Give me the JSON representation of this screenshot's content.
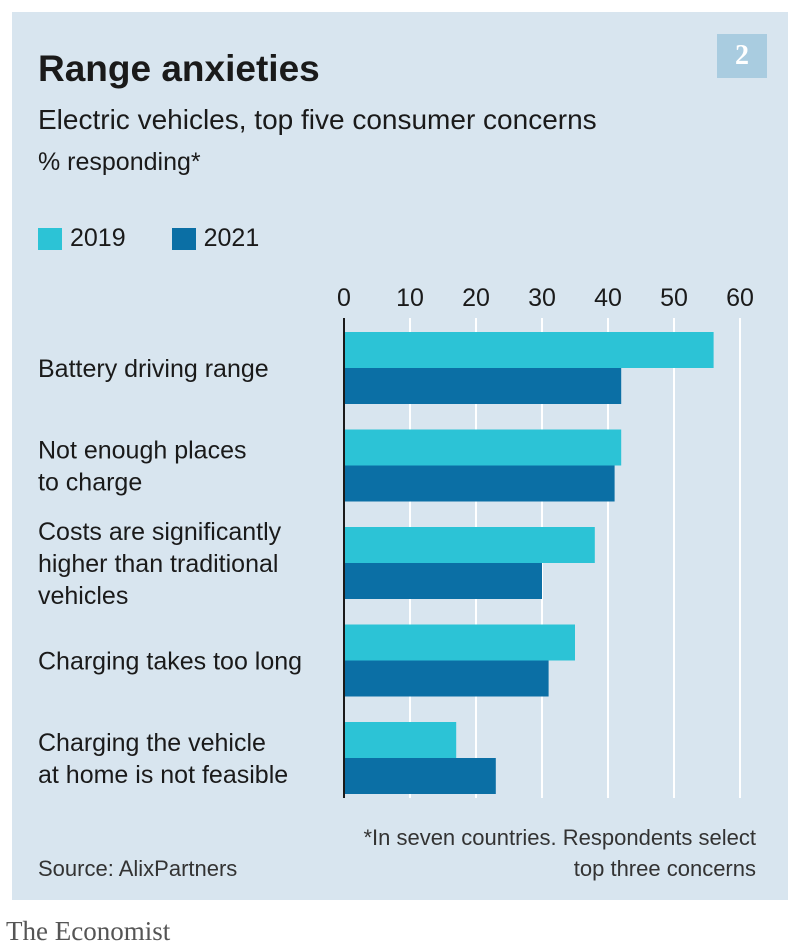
{
  "badge": "2",
  "footnote": "*In seven countries. Respondents select top three concerns",
  "source": "Source: AlixPartners",
  "brand": "The Economist",
  "colors": {
    "panel": "#d8e5ef",
    "series_2019": "#2cc3d6",
    "series_2021": "#0b6fa5",
    "grid": "#ffffff",
    "axis": "#1a1a1a"
  },
  "chart_data": {
    "type": "bar",
    "orientation": "horizontal",
    "title": "Range anxieties",
    "subtitle": "Electric vehicles, top five consumer concerns",
    "unit_label": "% responding*",
    "categories": [
      "Battery driving range",
      "Not enough places to charge",
      "Costs are significantly higher than traditional vehicles",
      "Charging takes too long",
      "Charging the vehicle at home is not feasible"
    ],
    "category_lines": [
      [
        "Battery driving range"
      ],
      [
        "Not enough places",
        "to charge"
      ],
      [
        "Costs are significantly",
        "higher than traditional",
        "vehicles"
      ],
      [
        "Charging takes too long"
      ],
      [
        "Charging the vehicle",
        "at home is not feasible"
      ]
    ],
    "series": [
      {
        "name": "2019",
        "values": [
          56,
          42,
          38,
          35,
          17
        ]
      },
      {
        "name": "2021",
        "values": [
          42,
          41,
          30,
          31,
          23
        ]
      }
    ],
    "xlim": [
      0,
      60
    ],
    "xticks": [
      0,
      10,
      20,
      30,
      40,
      50,
      60
    ],
    "xaxis_position": "top",
    "grid": true,
    "legend_position": "top-left"
  }
}
